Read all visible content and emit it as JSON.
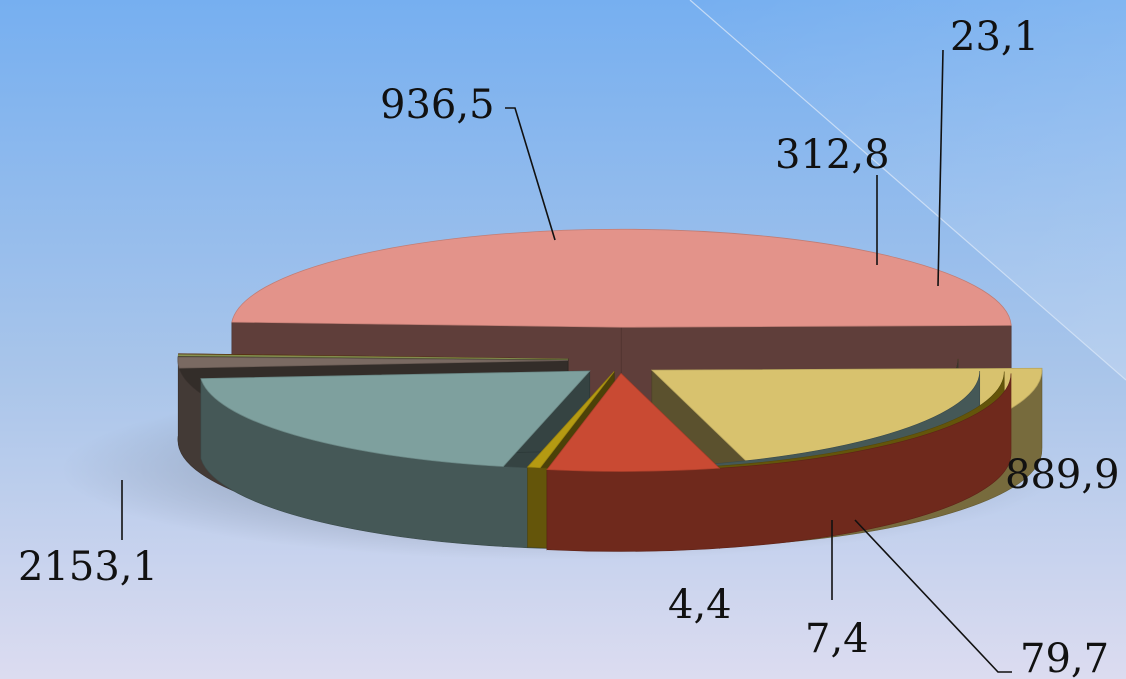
{
  "chart_data": {
    "type": "pie",
    "style": "3d-exploded",
    "slices": [
      {
        "label": "2153,1",
        "value": 2153.1,
        "color": "#e3938a"
      },
      {
        "label": "936,5",
        "value": 936.5,
        "color": "#d8c26e"
      },
      {
        "label": "312,8",
        "value": 312.8,
        "color": "#c94a33"
      },
      {
        "label": "23,1",
        "value": 23.1,
        "color": "#b59a12"
      },
      {
        "label": "889,9",
        "value": 889.9,
        "color": "#7ea09e"
      },
      {
        "label": "79,7",
        "value": 79.7,
        "color": "#7a6a62"
      },
      {
        "label": "7,4",
        "value": 7.4,
        "color": "#9aa55a"
      },
      {
        "label": "4,4",
        "value": 4.4,
        "color": "#6b3a12"
      }
    ],
    "legend": "none"
  }
}
